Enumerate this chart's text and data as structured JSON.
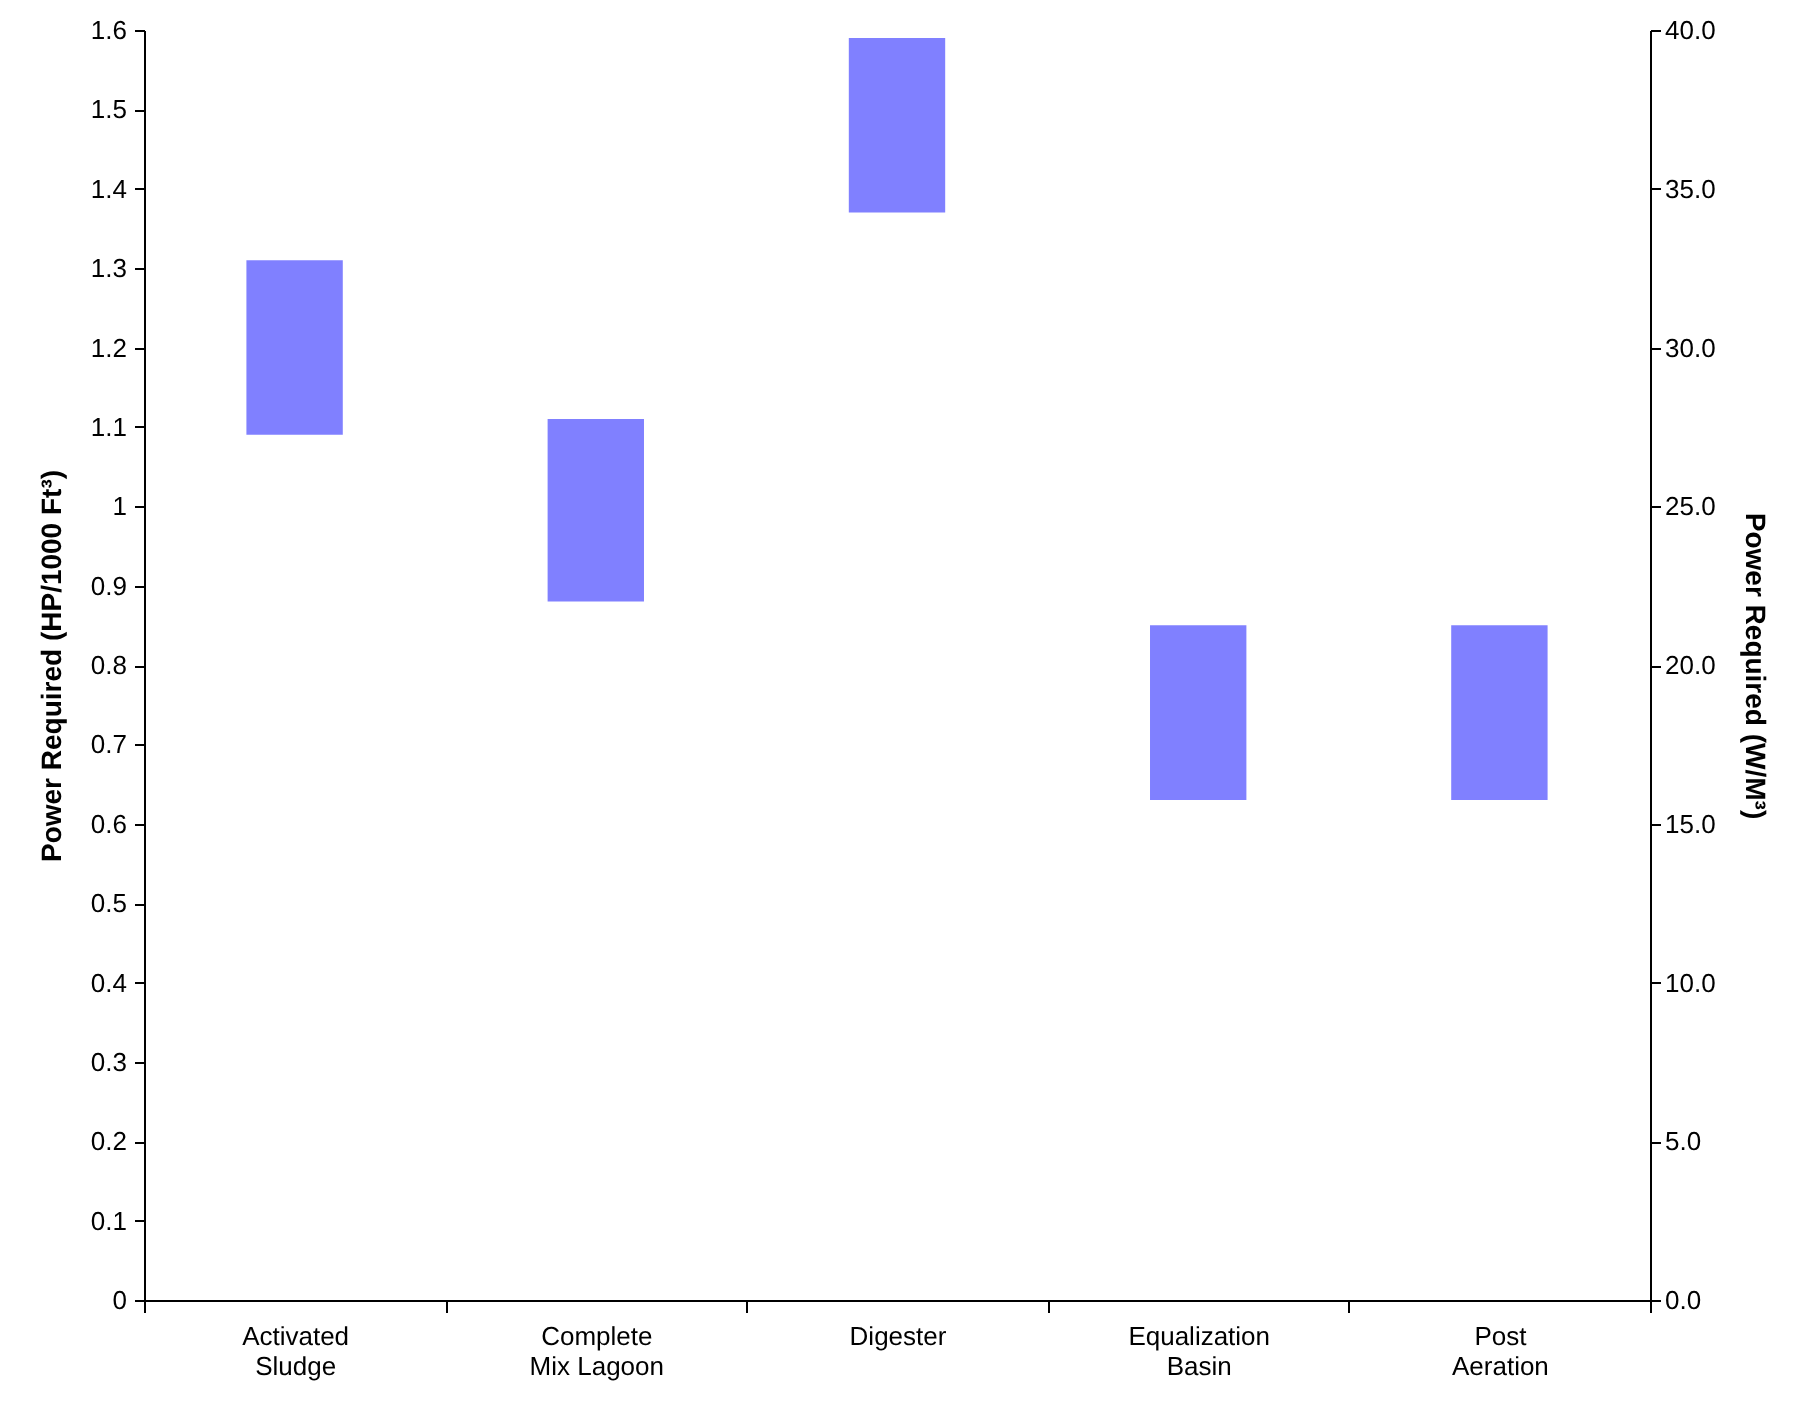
{
  "chart_data": {
    "type": "bar",
    "categories": [
      "Activated\nSludge",
      "Complete\nMix Lagoon",
      "Digester",
      "Equalization\nBasin",
      "Post\nAeration"
    ],
    "base": [
      1.09,
      0.88,
      1.37,
      0.63,
      0.63
    ],
    "values": [
      0.22,
      0.23,
      0.22,
      0.22,
      0.22
    ],
    "color": "#8080ff",
    "ylabel": "Power Required (HP/1000 Ft³)",
    "y2label": "Power Required (W/M³)",
    "ylim": [
      0,
      1.6
    ],
    "yticks": [
      0,
      0.1,
      0.2,
      0.3,
      0.4,
      0.5,
      0.6,
      0.7,
      0.8,
      0.9,
      1,
      1.1,
      1.2,
      1.3,
      1.4,
      1.5,
      1.6
    ],
    "y2lim": [
      0,
      40
    ],
    "y2ticks": [
      {
        "value": 0,
        "label": "0.0"
      },
      {
        "value": 5,
        "label": "5.0"
      },
      {
        "value": 10,
        "label": "10.0"
      },
      {
        "value": 15,
        "label": "15.0"
      },
      {
        "value": 20,
        "label": "20.0"
      },
      {
        "value": 25,
        "label": "25.0"
      },
      {
        "value": 30,
        "label": "30.0"
      },
      {
        "value": 35,
        "label": "35.0"
      },
      {
        "value": 40,
        "label": "40.0"
      }
    ],
    "grid": false
  }
}
